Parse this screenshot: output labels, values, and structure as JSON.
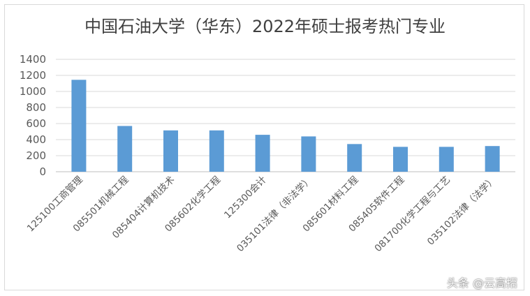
{
  "chart_data": {
    "type": "bar",
    "title": "中国石油大学（华东）2022年硕士报考热门专业",
    "categories": [
      "125100工商管理",
      "085501机械工程",
      "085404计算机技术",
      "085602化学工程",
      "125300会计",
      "035101法律（非法学）",
      "085601材料工程",
      "085405软件工程",
      "081700化学工程与工艺",
      "035102法律（法学）"
    ],
    "values": [
      1145,
      570,
      515,
      515,
      460,
      440,
      345,
      310,
      310,
      320
    ],
    "ylim": [
      0,
      1400
    ],
    "yticks": [
      "0",
      "200",
      "400",
      "600",
      "800",
      "1000",
      "1200",
      "1400"
    ],
    "grid": true,
    "bar_color": "#5b9bd5"
  },
  "watermark": "头条 @云高招"
}
